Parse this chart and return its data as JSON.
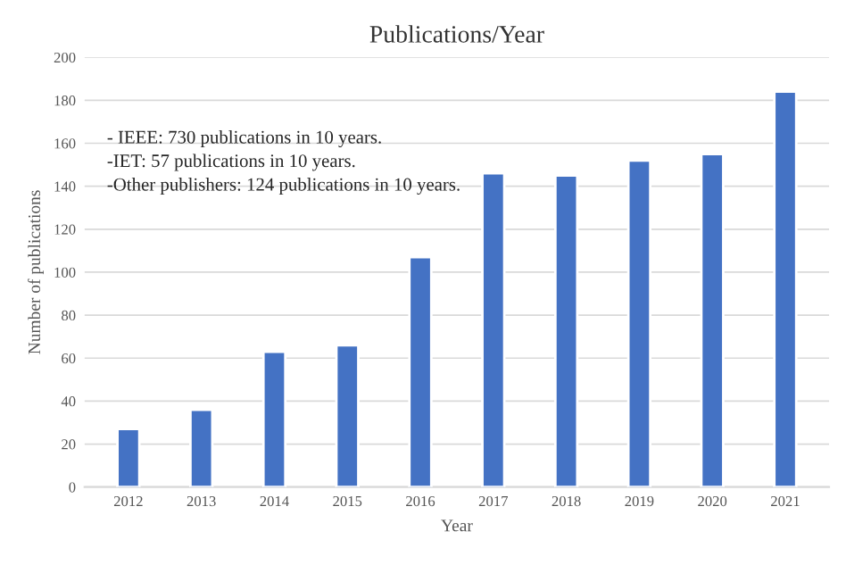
{
  "chart_data": {
    "type": "bar",
    "title": "Publications/Year",
    "xlabel": "Year",
    "ylabel": "Number of publications",
    "categories": [
      "2012",
      "2013",
      "2014",
      "2015",
      "2016",
      "2017",
      "2018",
      "2019",
      "2020",
      "2021"
    ],
    "values": [
      27,
      36,
      63,
      66,
      107,
      146,
      145,
      152,
      155,
      184
    ],
    "color": "#4472c4",
    "ylim": [
      0,
      200
    ],
    "yticks": [
      0,
      20,
      40,
      60,
      80,
      100,
      120,
      140,
      160,
      180,
      200
    ],
    "grid": "y",
    "annotations": [
      "- IEEE: 730 publications in 10 years.",
      "-IET: 57 publications in 10 years.",
      "-Other publishers: 124 publications in 10 years."
    ]
  }
}
